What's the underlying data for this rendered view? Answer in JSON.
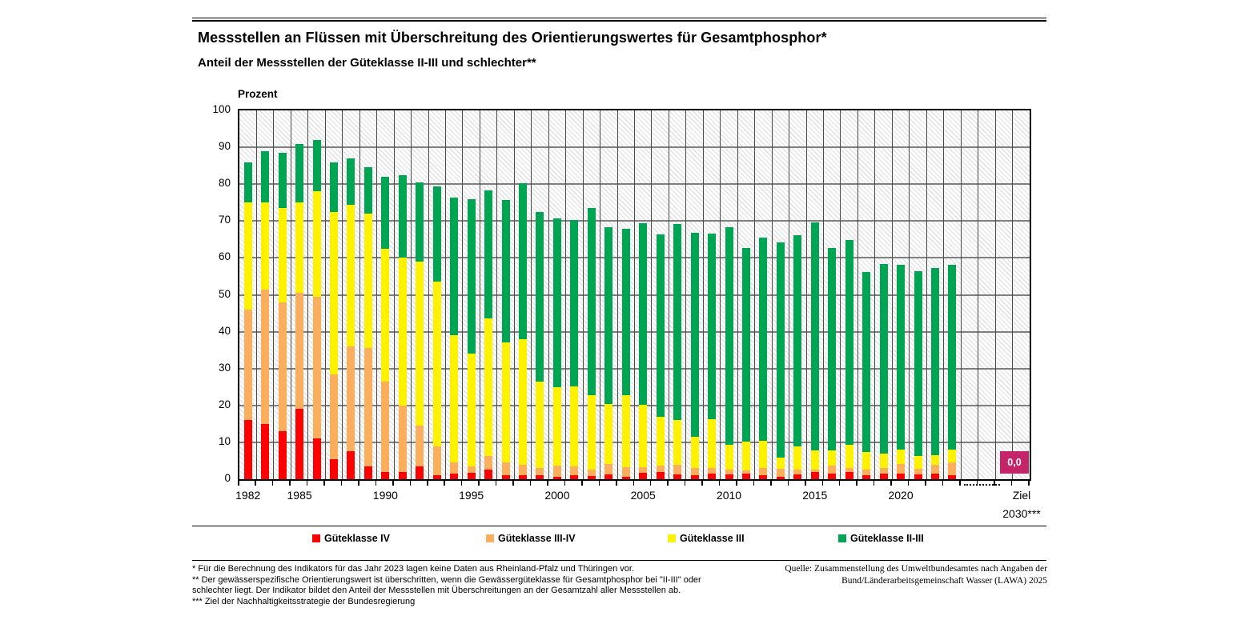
{
  "header": {
    "title": "Messstellen an Flüssen mit Überschreitung des Orientierungswertes für Gesamtphosphor*",
    "subtitle": "Anteil der Messstellen der Güteklasse II-III und schlechter**"
  },
  "chart_data": {
    "type": "bar",
    "stacked": true,
    "unit_label": "Prozent",
    "ylim": [
      0,
      100
    ],
    "ytick_step": 10,
    "grid": "on",
    "years": [
      1982,
      1983,
      1984,
      1985,
      1986,
      1987,
      1988,
      1989,
      1990,
      1991,
      1992,
      1993,
      1994,
      1995,
      1996,
      1997,
      1998,
      1999,
      2000,
      2001,
      2002,
      2003,
      2004,
      2005,
      2006,
      2007,
      2008,
      2009,
      2010,
      2011,
      2012,
      2013,
      2014,
      2015,
      2016,
      2017,
      2018,
      2019,
      2020,
      2021,
      2022,
      2023
    ],
    "labeled_xticks": [
      1982,
      1985,
      1990,
      1995,
      2000,
      2005,
      2010,
      2015,
      2020
    ],
    "series": [
      {
        "name": "Güteklasse IV",
        "color": "#ff0000",
        "values": [
          16.0,
          15.0,
          13.0,
          19.0,
          11.0,
          5.5,
          7.5,
          3.5,
          2.0,
          2.0,
          3.5,
          1.0,
          1.5,
          1.7,
          2.5,
          1.0,
          1.0,
          1.0,
          0.7,
          1.0,
          0.9,
          1.3,
          0.7,
          1.7,
          2.0,
          1.3,
          1.1,
          1.5,
          1.3,
          1.5,
          1.1,
          0.7,
          1.4,
          1.9,
          1.6,
          2.0,
          1.1,
          1.5,
          1.5,
          1.3,
          1.6,
          1.0
        ]
      },
      {
        "name": "Güteklasse III-IV",
        "color": "#fbae5c",
        "values": [
          30.0,
          36.5,
          35.0,
          31.5,
          38.5,
          23.0,
          28.5,
          32.0,
          24.5,
          18.0,
          11.0,
          8.0,
          3.0,
          1.8,
          3.7,
          3.5,
          3.0,
          2.0,
          3.0,
          2.4,
          1.8,
          2.8,
          2.6,
          1.6,
          1.6,
          2.6,
          2.0,
          1.6,
          1.3,
          0.9,
          2.0,
          2.1,
          1.2,
          0.8,
          2.0,
          1.1,
          1.6,
          1.6,
          2.6,
          1.6,
          2.3,
          3.5
        ]
      },
      {
        "name": "Güteklasse III",
        "color": "#fff200",
        "values": [
          29.0,
          23.5,
          25.5,
          24.5,
          28.5,
          44.0,
          38.5,
          36.5,
          36.0,
          40.0,
          44.5,
          44.5,
          34.5,
          30.5,
          37.3,
          32.5,
          34.0,
          23.5,
          21.3,
          21.8,
          20.1,
          16.4,
          19.5,
          16.8,
          13.3,
          12.1,
          8.3,
          13.1,
          6.7,
          7.7,
          7.4,
          3.0,
          6.4,
          5.1,
          4.2,
          6.3,
          4.6,
          3.8,
          4.0,
          3.3,
          2.6,
          3.5
        ]
      },
      {
        "name": "Güteklasse II-III",
        "color": "#00a553",
        "values": [
          11.0,
          14.0,
          15.0,
          16.0,
          14.0,
          13.5,
          12.5,
          12.5,
          19.5,
          22.5,
          21.5,
          25.8,
          37.3,
          41.9,
          34.8,
          38.8,
          42.2,
          46.0,
          45.8,
          45.0,
          50.7,
          47.8,
          45.0,
          49.4,
          49.5,
          53.3,
          55.5,
          50.3,
          59.0,
          52.7,
          55.0,
          58.5,
          57.1,
          61.9,
          55.0,
          55.4,
          48.9,
          51.4,
          50.1,
          50.1,
          50.7,
          50.2
        ]
      }
    ],
    "target": {
      "label_line1": "Ziel",
      "label_line2": "2030***",
      "value": "0,0",
      "color": "#c32568"
    }
  },
  "footnotes": [
    "* Für die Berechnung des Indikators für das Jahr 2023 lagen keine Daten aus Rheinland-Pfalz und Thüringen vor.",
    "** Der gewässerspezifische Orientierungswert ist überschritten, wenn die Gewässergüteklasse für Gesamtphosphor bei \"II-III\" oder schlechter liegt. Der Indikator bildet den Anteil der Messstellen mit Überschreitungen an der Gesamtzahl aller Messstellen ab.",
    "*** Ziel der Nachhaltigkeitsstrategie der Bundesregierung"
  ],
  "source": {
    "line1": "Quelle: Zusammenstellung des Umweltbundesamtes nach Angaben der",
    "line2": "Bund/Länderarbeitsgemeinschaft Wasser (LAWA) 2025"
  }
}
